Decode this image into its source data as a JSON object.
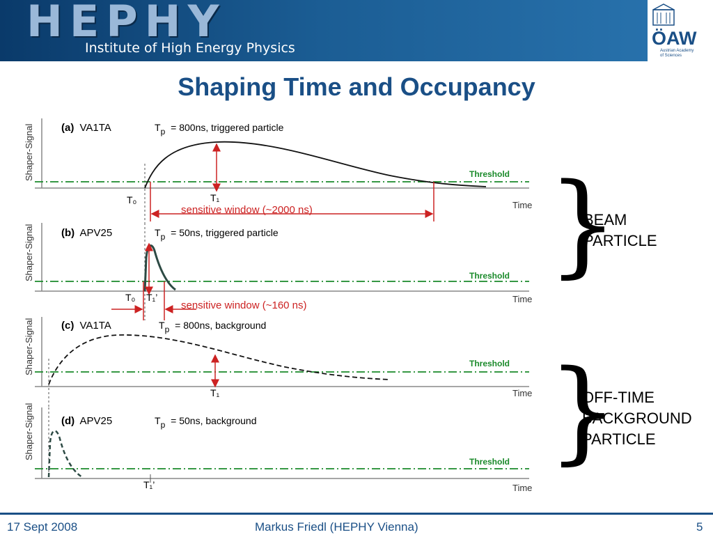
{
  "header": {
    "logo": "HEPHY",
    "subtitle": "Institute of High Energy Physics",
    "academy_logo": "ÖAW",
    "academy_name_line1": "Austrian Academy",
    "academy_name_line2": "of Sciences"
  },
  "title": "Shaping Time and Occupancy",
  "panels": [
    {
      "label_letter": "(a)",
      "chip": "VA1TA",
      "tp_text": "= 800ns, triggered particle",
      "y_axis_label": "Shaper-Signal",
      "threshold_label": "Threshold",
      "x_axis_label": "Time",
      "t0": "T₀",
      "t1": "T₁",
      "window_label": "sensitive window (~2000 ns)"
    },
    {
      "label_letter": "(b)",
      "chip": "APV25",
      "tp_text": "= 50ns, triggered particle",
      "y_axis_label": "Shaper-Signal",
      "threshold_label": "Threshold",
      "x_axis_label": "Time",
      "t0": "T₀",
      "t1": "T₁’",
      "window_label": "sensitive window (~160 ns)"
    },
    {
      "label_letter": "(c)",
      "chip": "VA1TA",
      "tp_text": "= 800ns, background",
      "y_axis_label": "Shaper-Signal",
      "threshold_label": "Threshold",
      "x_axis_label": "Time",
      "t1": "T₁"
    },
    {
      "label_letter": "(d)",
      "chip": "APV25",
      "tp_text": "= 50ns, background",
      "y_axis_label": "Shaper-Signal",
      "threshold_label": "Threshold",
      "x_axis_label": "Time",
      "t1": "T₁’"
    }
  ],
  "tp_symbol": "T",
  "tp_subscript": "p",
  "side_labels": {
    "beam": [
      "BEAM",
      "PARTICLE"
    ],
    "offtime": [
      "OFF-TIME",
      "BACKGROUND",
      "PARTICLE"
    ],
    "brace": "}"
  },
  "footer": {
    "date": "17 Sept 2008",
    "author": "Markus Friedl (HEPHY Vienna)",
    "page": "5"
  },
  "colors": {
    "accent": "#1a4f86",
    "threshold": "#1a8a2a",
    "arrow": "#cc2222"
  }
}
